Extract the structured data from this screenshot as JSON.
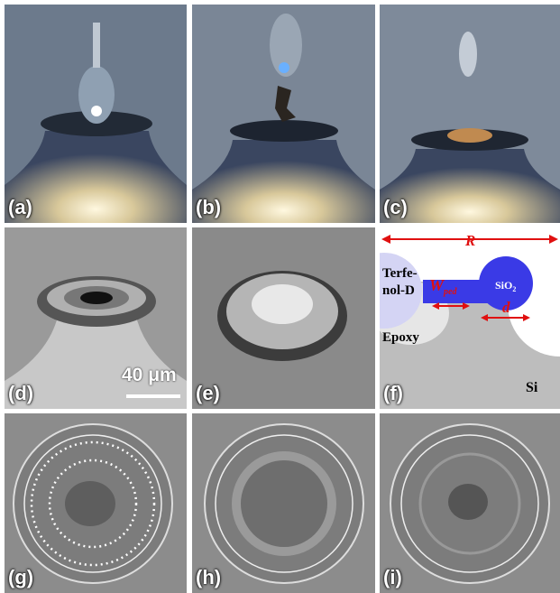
{
  "panels": [
    {
      "label": "(a)"
    },
    {
      "label": "(b)"
    },
    {
      "label": "(c)"
    },
    {
      "label": "(d)",
      "scale_bar": "40 μm"
    },
    {
      "label": "(e)"
    },
    {
      "label": "(f)",
      "annotations": {
        "R": "R",
        "terfenol_line1": "Terfe-",
        "terfenol_line2": "nol-D",
        "w": "W",
        "w_sub": "ped",
        "sio": "SiO",
        "sio_sub": "2",
        "d": "d",
        "epoxy": "Epoxy",
        "si": "Si"
      }
    },
    {
      "label": "(g)"
    },
    {
      "label": "(h)"
    },
    {
      "label": "(i)"
    }
  ]
}
